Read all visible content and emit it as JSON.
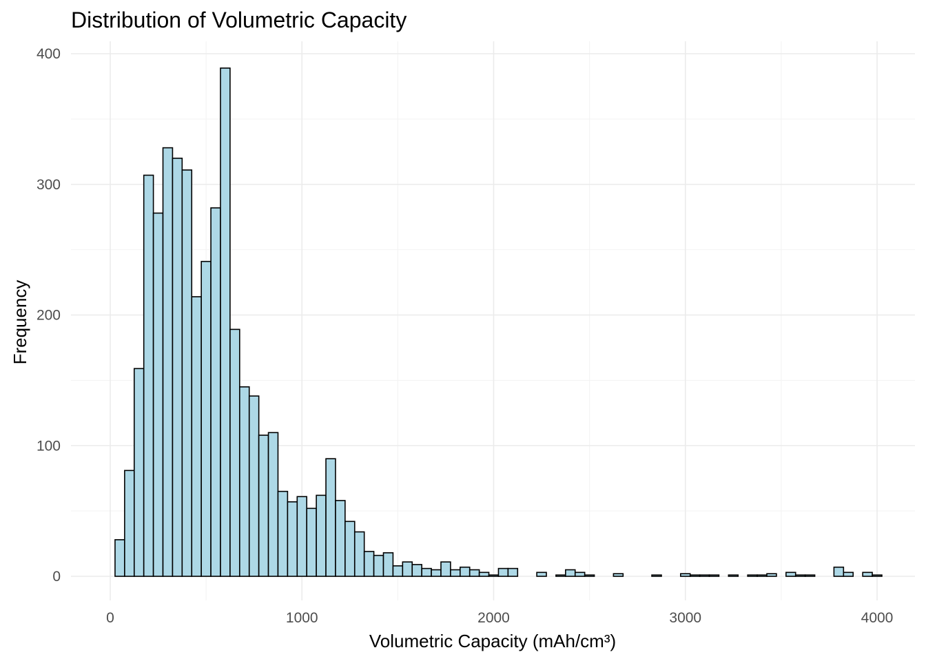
{
  "chart_data": {
    "type": "histogram",
    "title": "Distribution of Volumetric Capacity",
    "xlabel": "Volumetric Capacity (mAh/cm³)",
    "ylabel": "Frequency",
    "xlim": [
      -100,
      4050
    ],
    "ylim": [
      -20,
      410
    ],
    "x_ticks": [
      0,
      1000,
      2000,
      3000,
      4000
    ],
    "y_ticks": [
      0,
      100,
      200,
      300,
      400
    ],
    "bin_width": 50,
    "bin_start": 25,
    "grid": true,
    "bar_fill": "#add8e6",
    "bar_stroke": "#000000",
    "values": [
      28,
      81,
      159,
      307,
      278,
      328,
      320,
      311,
      214,
      241,
      282,
      389,
      189,
      145,
      138,
      108,
      110,
      65,
      57,
      61,
      52,
      62,
      90,
      58,
      42,
      34,
      19,
      16,
      18,
      8,
      11,
      9,
      6,
      5,
      11,
      5,
      7,
      5,
      3,
      1,
      6,
      6,
      0,
      0,
      3,
      0,
      1,
      5,
      3,
      1,
      0,
      0,
      2,
      0,
      0,
      0,
      1,
      0,
      0,
      2,
      1,
      1,
      1,
      0,
      1,
      0,
      1,
      1,
      2,
      0,
      3,
      1,
      1,
      0,
      0,
      7,
      3,
      0,
      3,
      1
    ]
  }
}
